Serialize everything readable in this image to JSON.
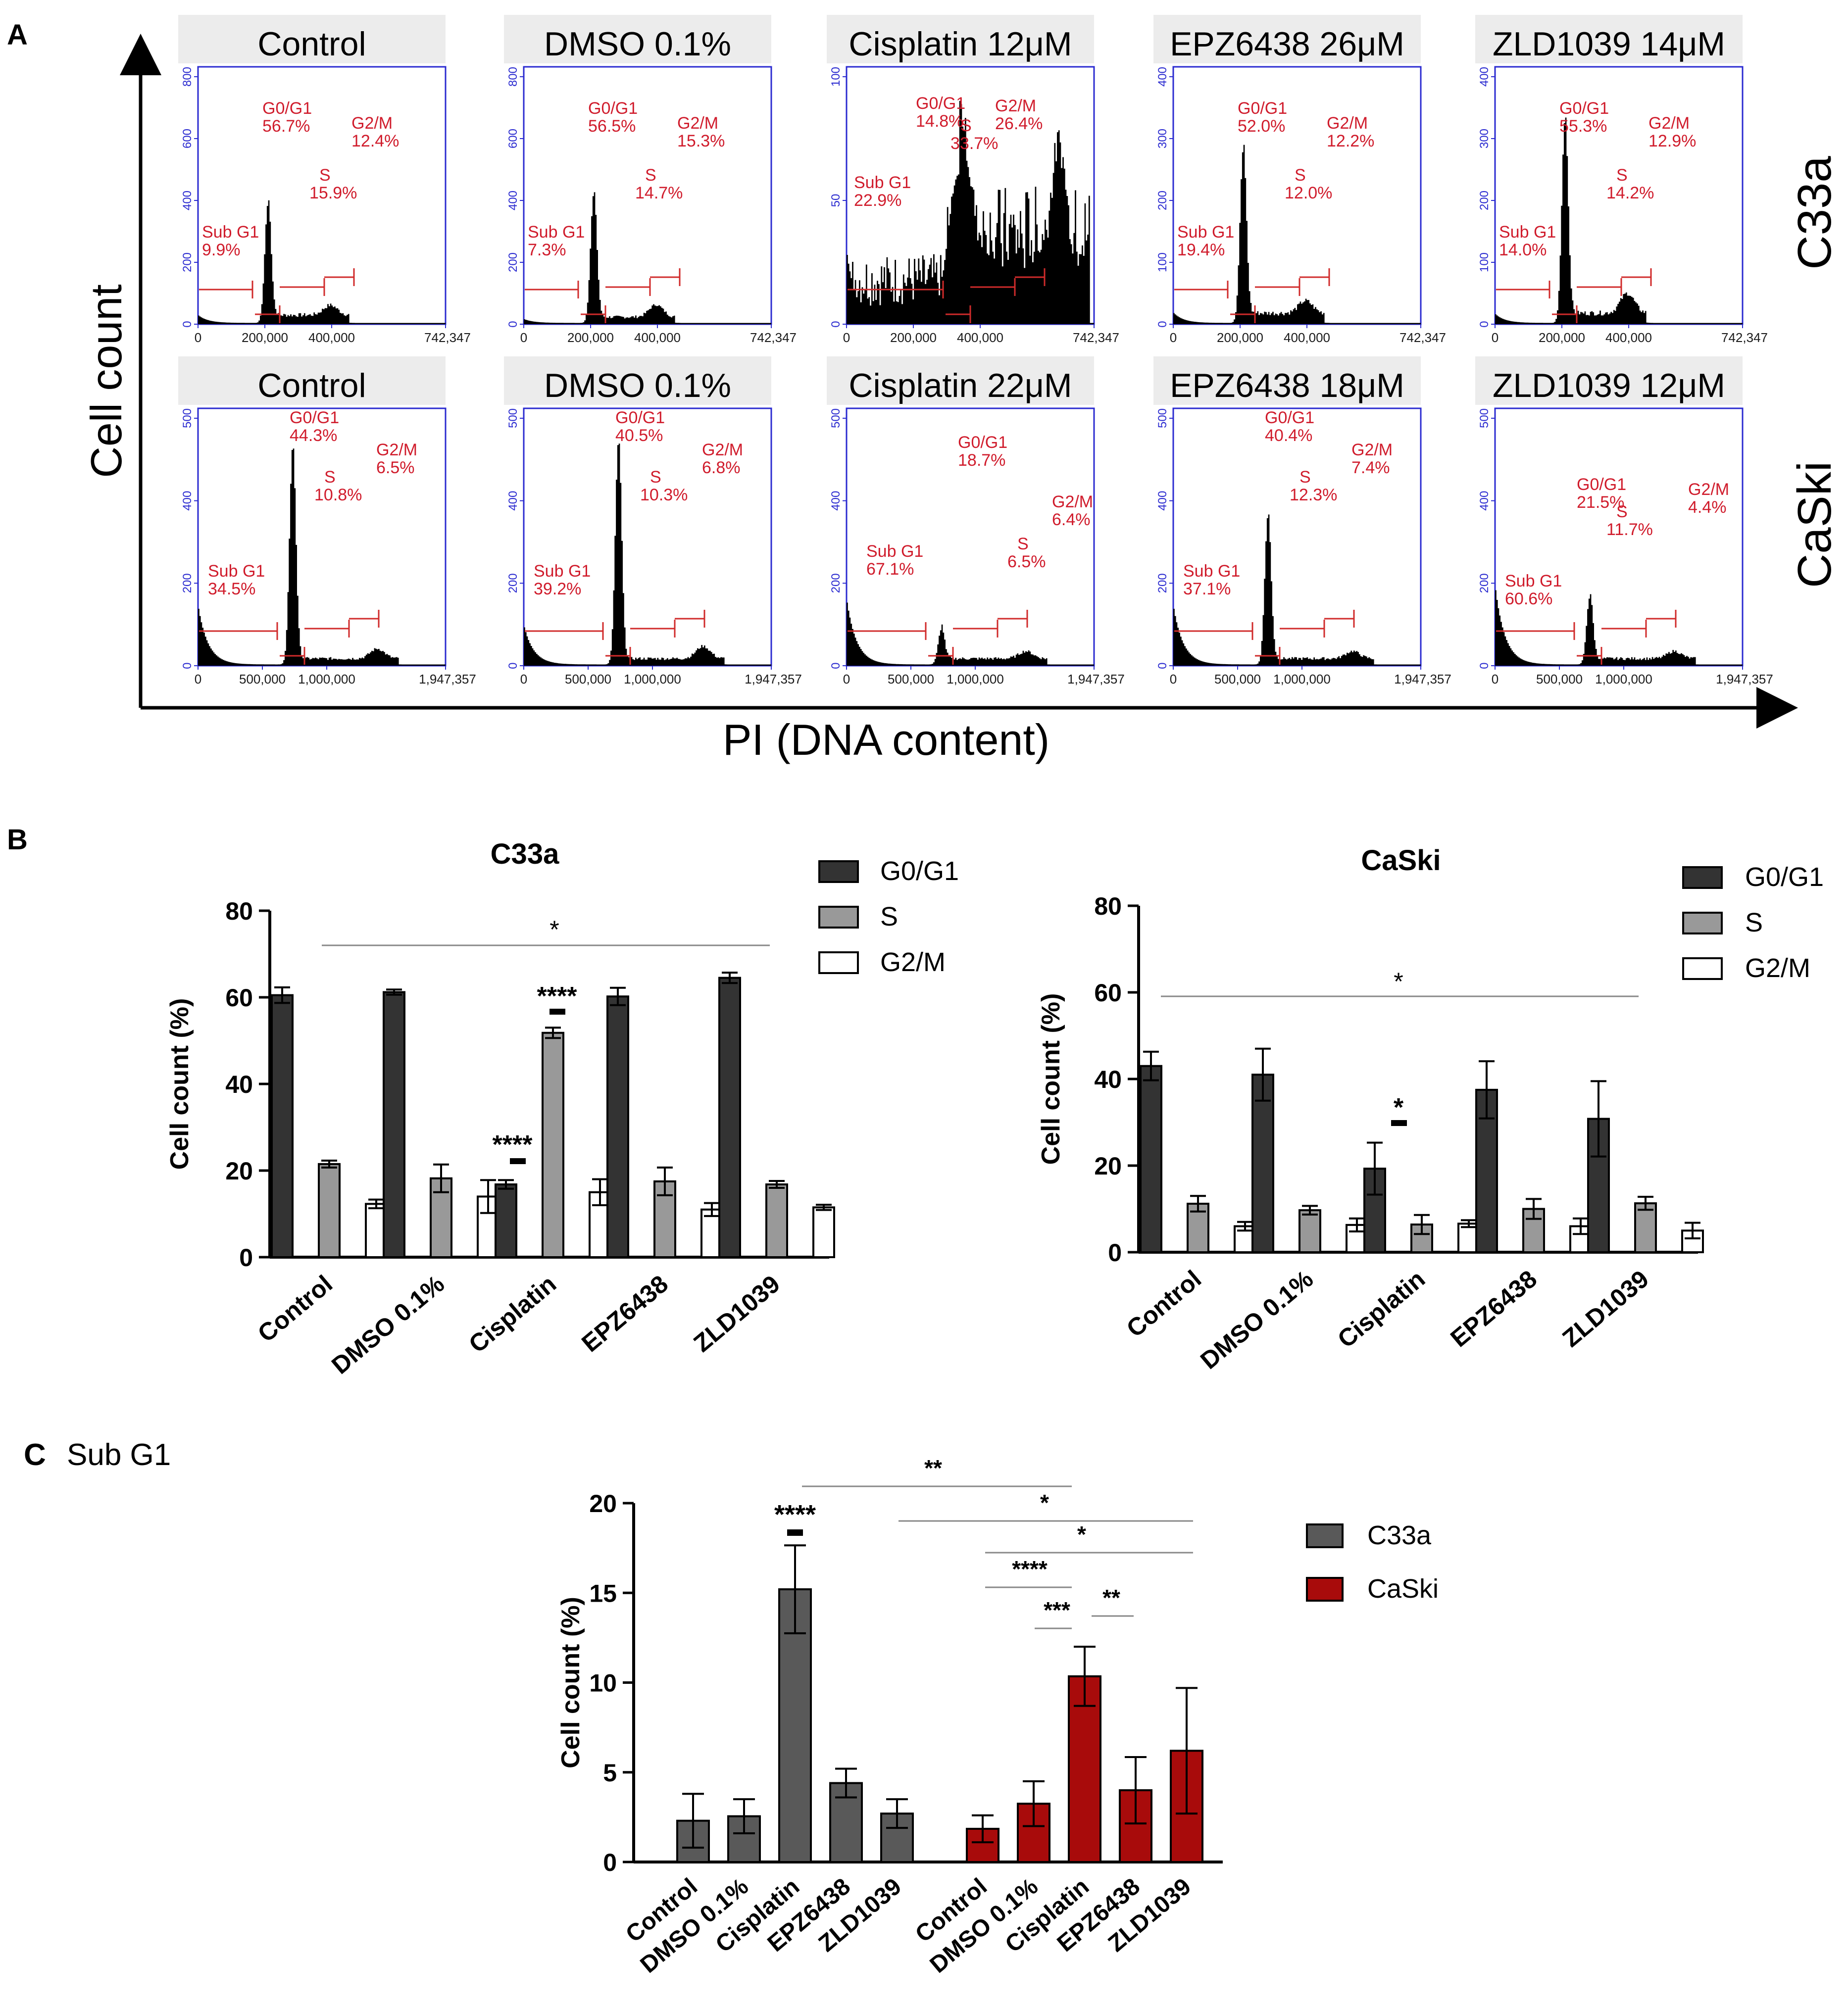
{
  "panels": {
    "a": "A",
    "b": "B",
    "c": "C"
  },
  "colors": {
    "axis_blue": "#2b2bd0",
    "gate_red": "#d02b2b",
    "label_red": "#d01c2c",
    "hist_black": "#000000",
    "header_grey": "#ececec",
    "g0": "#333333",
    "s": "#999999",
    "g2m": "#ffffff",
    "c33a": "#595959",
    "caski": "#a80b0b"
  },
  "panel_a": {
    "ylabel": "Cell count",
    "xlabel": "PI (DNA content)",
    "row_labels": [
      "C33a",
      "CaSki"
    ],
    "rows": [
      {
        "xticks": [
          "0",
          "200,000",
          "400,000",
          "742,347"
        ],
        "plots": [
          {
            "header": "Control",
            "yticks": [
              "0",
              "200",
              "400",
              "600",
              "800"
            ],
            "labels": {
              "subg1": "Sub G1",
              "subg1_pct": "9.9%",
              "g1": "G0/G1",
              "g1_pct": "56.7%",
              "s": "S",
              "s_pct": "15.9%",
              "g2": "G2/M",
              "g2_pct": "12.4%"
            }
          },
          {
            "header": "DMSO 0.1%",
            "yticks": [
              "0",
              "200",
              "400",
              "600",
              "800"
            ],
            "labels": {
              "subg1": "Sub G1",
              "subg1_pct": "7.3%",
              "g1": "G0/G1",
              "g1_pct": "56.5%",
              "s": "S",
              "s_pct": "14.7%",
              "g2": "G2/M",
              "g2_pct": "15.3%"
            }
          },
          {
            "header": "Cisplatin 12μM",
            "yticks": [
              "0",
              "50",
              "100"
            ],
            "labels": {
              "subg1": "Sub G1",
              "subg1_pct": "22.9%",
              "g1": "G0/G1",
              "g1_pct": "14.8%",
              "s": "S",
              "s_pct": "33.7%",
              "g2": "G2/M",
              "g2_pct": "26.4%"
            }
          },
          {
            "header": "EPZ6438 26μM",
            "yticks": [
              "0",
              "100",
              "200",
              "300",
              "400"
            ],
            "labels": {
              "subg1": "Sub G1",
              "subg1_pct": "19.4%",
              "g1": "G0/G1",
              "g1_pct": "52.0%",
              "s": "S",
              "s_pct": "12.0%",
              "g2": "G2/M",
              "g2_pct": "12.2%"
            }
          },
          {
            "header": "ZLD1039 14μM",
            "yticks": [
              "0",
              "100",
              "200",
              "300",
              "400"
            ],
            "labels": {
              "subg1": "Sub G1",
              "subg1_pct": "14.0%",
              "g1": "G0/G1",
              "g1_pct": "55.3%",
              "s": "S",
              "s_pct": "14.2%",
              "g2": "G2/M",
              "g2_pct": "12.9%"
            }
          }
        ]
      },
      {
        "xticks": [
          "0",
          "500,000",
          "1,000,000",
          "1,947,357"
        ],
        "plots": [
          {
            "header": "Control",
            "yticks": [
              "0",
              "200",
              "400",
              "500"
            ],
            "labels": {
              "subg1": "Sub G1",
              "subg1_pct": "34.5%",
              "g1": "G0/G1",
              "g1_pct": "44.3%",
              "s": "S",
              "s_pct": "10.8%",
              "g2": "G2/M",
              "g2_pct": "6.5%"
            }
          },
          {
            "header": "DMSO 0.1%",
            "yticks": [
              "0",
              "200",
              "400",
              "500"
            ],
            "labels": {
              "subg1": "Sub G1",
              "subg1_pct": "39.2%",
              "g1": "G0/G1",
              "g1_pct": "40.5%",
              "s": "S",
              "s_pct": "10.3%",
              "g2": "G2/M",
              "g2_pct": "6.8%"
            }
          },
          {
            "header": "Cisplatin 22μM",
            "yticks": [
              "0",
              "200",
              "400",
              "500"
            ],
            "labels": {
              "subg1": "Sub G1",
              "subg1_pct": "67.1%",
              "g1": "G0/G1",
              "g1_pct": "18.7%",
              "s": "S",
              "s_pct": "6.5%",
              "g2": "G2/M",
              "g2_pct": "6.4%"
            }
          },
          {
            "header": "EPZ6438 18μM",
            "yticks": [
              "0",
              "200",
              "400",
              "500"
            ],
            "labels": {
              "subg1": "Sub G1",
              "subg1_pct": "37.1%",
              "g1": "G0/G1",
              "g1_pct": "40.4%",
              "s": "S",
              "s_pct": "12.3%",
              "g2": "G2/M",
              "g2_pct": "7.4%"
            }
          },
          {
            "header": "ZLD1039 12μM",
            "yticks": [
              "0",
              "200",
              "400",
              "500"
            ],
            "labels": {
              "subg1": "Sub G1",
              "subg1_pct": "60.6%",
              "g1": "G0/G1",
              "g1_pct": "21.5%",
              "s": "S",
              "s_pct": "11.7%",
              "g2": "G2/M",
              "g2_pct": "4.4%"
            }
          }
        ]
      }
    ]
  },
  "chart_data": [
    {
      "id": "b_c33a",
      "type": "bar",
      "title": "C33a",
      "xlabel": "",
      "ylabel": "Cell count (%)",
      "ylim": [
        0,
        80
      ],
      "yticks": [
        0,
        20,
        40,
        60,
        80
      ],
      "categories": [
        "Control",
        "DMSO 0.1%",
        "Cisplatin",
        "EPZ6438",
        "ZLD1039"
      ],
      "series": [
        {
          "name": "G0/G1",
          "values": [
            60.5,
            61.2,
            16.8,
            60.2,
            64.5
          ],
          "errors": [
            1.8,
            0.6,
            1.0,
            2.0,
            1.2
          ]
        },
        {
          "name": "S",
          "values": [
            21.5,
            18.2,
            51.8,
            17.5,
            16.8
          ],
          "errors": [
            0.8,
            3.2,
            1.2,
            3.2,
            0.8
          ]
        },
        {
          "name": "G2/M",
          "values": [
            12.3,
            14.0,
            15.0,
            11.0,
            11.5
          ],
          "errors": [
            1.0,
            3.8,
            3.0,
            1.5,
            0.6
          ]
        }
      ],
      "legend": "top-right",
      "significance": [
        {
          "label": "*",
          "type": "span"
        },
        {
          "label": "****",
          "type": "marker"
        },
        {
          "label": "****",
          "type": "marker"
        }
      ]
    },
    {
      "id": "b_caski",
      "type": "bar",
      "title": "CaSki",
      "xlabel": "",
      "ylabel": "Cell count (%)",
      "ylim": [
        0,
        80
      ],
      "yticks": [
        0,
        20,
        40,
        60,
        80
      ],
      "categories": [
        "Control",
        "DMSO 0.1%",
        "Cisplatin",
        "EPZ6438",
        "ZLD1039"
      ],
      "series": [
        {
          "name": "G0/G1",
          "values": [
            43.0,
            41.0,
            19.3,
            37.5,
            30.8
          ],
          "errors": [
            3.3,
            6.0,
            6.0,
            6.6,
            8.7
          ]
        },
        {
          "name": "S",
          "values": [
            11.2,
            9.7,
            6.4,
            10.0,
            11.3
          ],
          "errors": [
            1.8,
            1.0,
            2.2,
            2.3,
            1.5
          ]
        },
        {
          "name": "G2/M",
          "values": [
            6.0,
            6.3,
            6.6,
            6.0,
            5.0
          ],
          "errors": [
            1.0,
            1.5,
            0.8,
            1.8,
            1.8
          ]
        }
      ],
      "legend": "top-right",
      "significance": [
        {
          "label": "*",
          "type": "span"
        },
        {
          "label": "*",
          "type": "marker"
        }
      ]
    },
    {
      "id": "c_subg1",
      "type": "bar",
      "title": "Sub G1",
      "xlabel": "",
      "ylabel": "Cell count (%)",
      "ylim": [
        0,
        20
      ],
      "yticks": [
        0,
        5,
        10,
        15,
        20
      ],
      "categories": [
        "Control",
        "DMSO 0.1%",
        "Cisplatin",
        "EPZ6438",
        "ZLD1039"
      ],
      "series": [
        {
          "name": "C33a",
          "values": [
            2.3,
            2.55,
            15.2,
            4.4,
            2.7
          ],
          "errors": [
            1.5,
            0.95,
            2.45,
            0.8,
            0.8
          ]
        },
        {
          "name": "CaSki",
          "values": [
            1.85,
            3.25,
            10.35,
            4.0,
            6.2
          ],
          "errors": [
            0.75,
            1.25,
            1.65,
            1.85,
            3.5
          ]
        }
      ],
      "legend": "top-right",
      "significance": [
        {
          "label": "**"
        },
        {
          "label": "*"
        },
        {
          "label": "*"
        },
        {
          "label": "****"
        },
        {
          "label": "***"
        },
        {
          "label": "**"
        },
        {
          "label": "****"
        }
      ]
    }
  ]
}
